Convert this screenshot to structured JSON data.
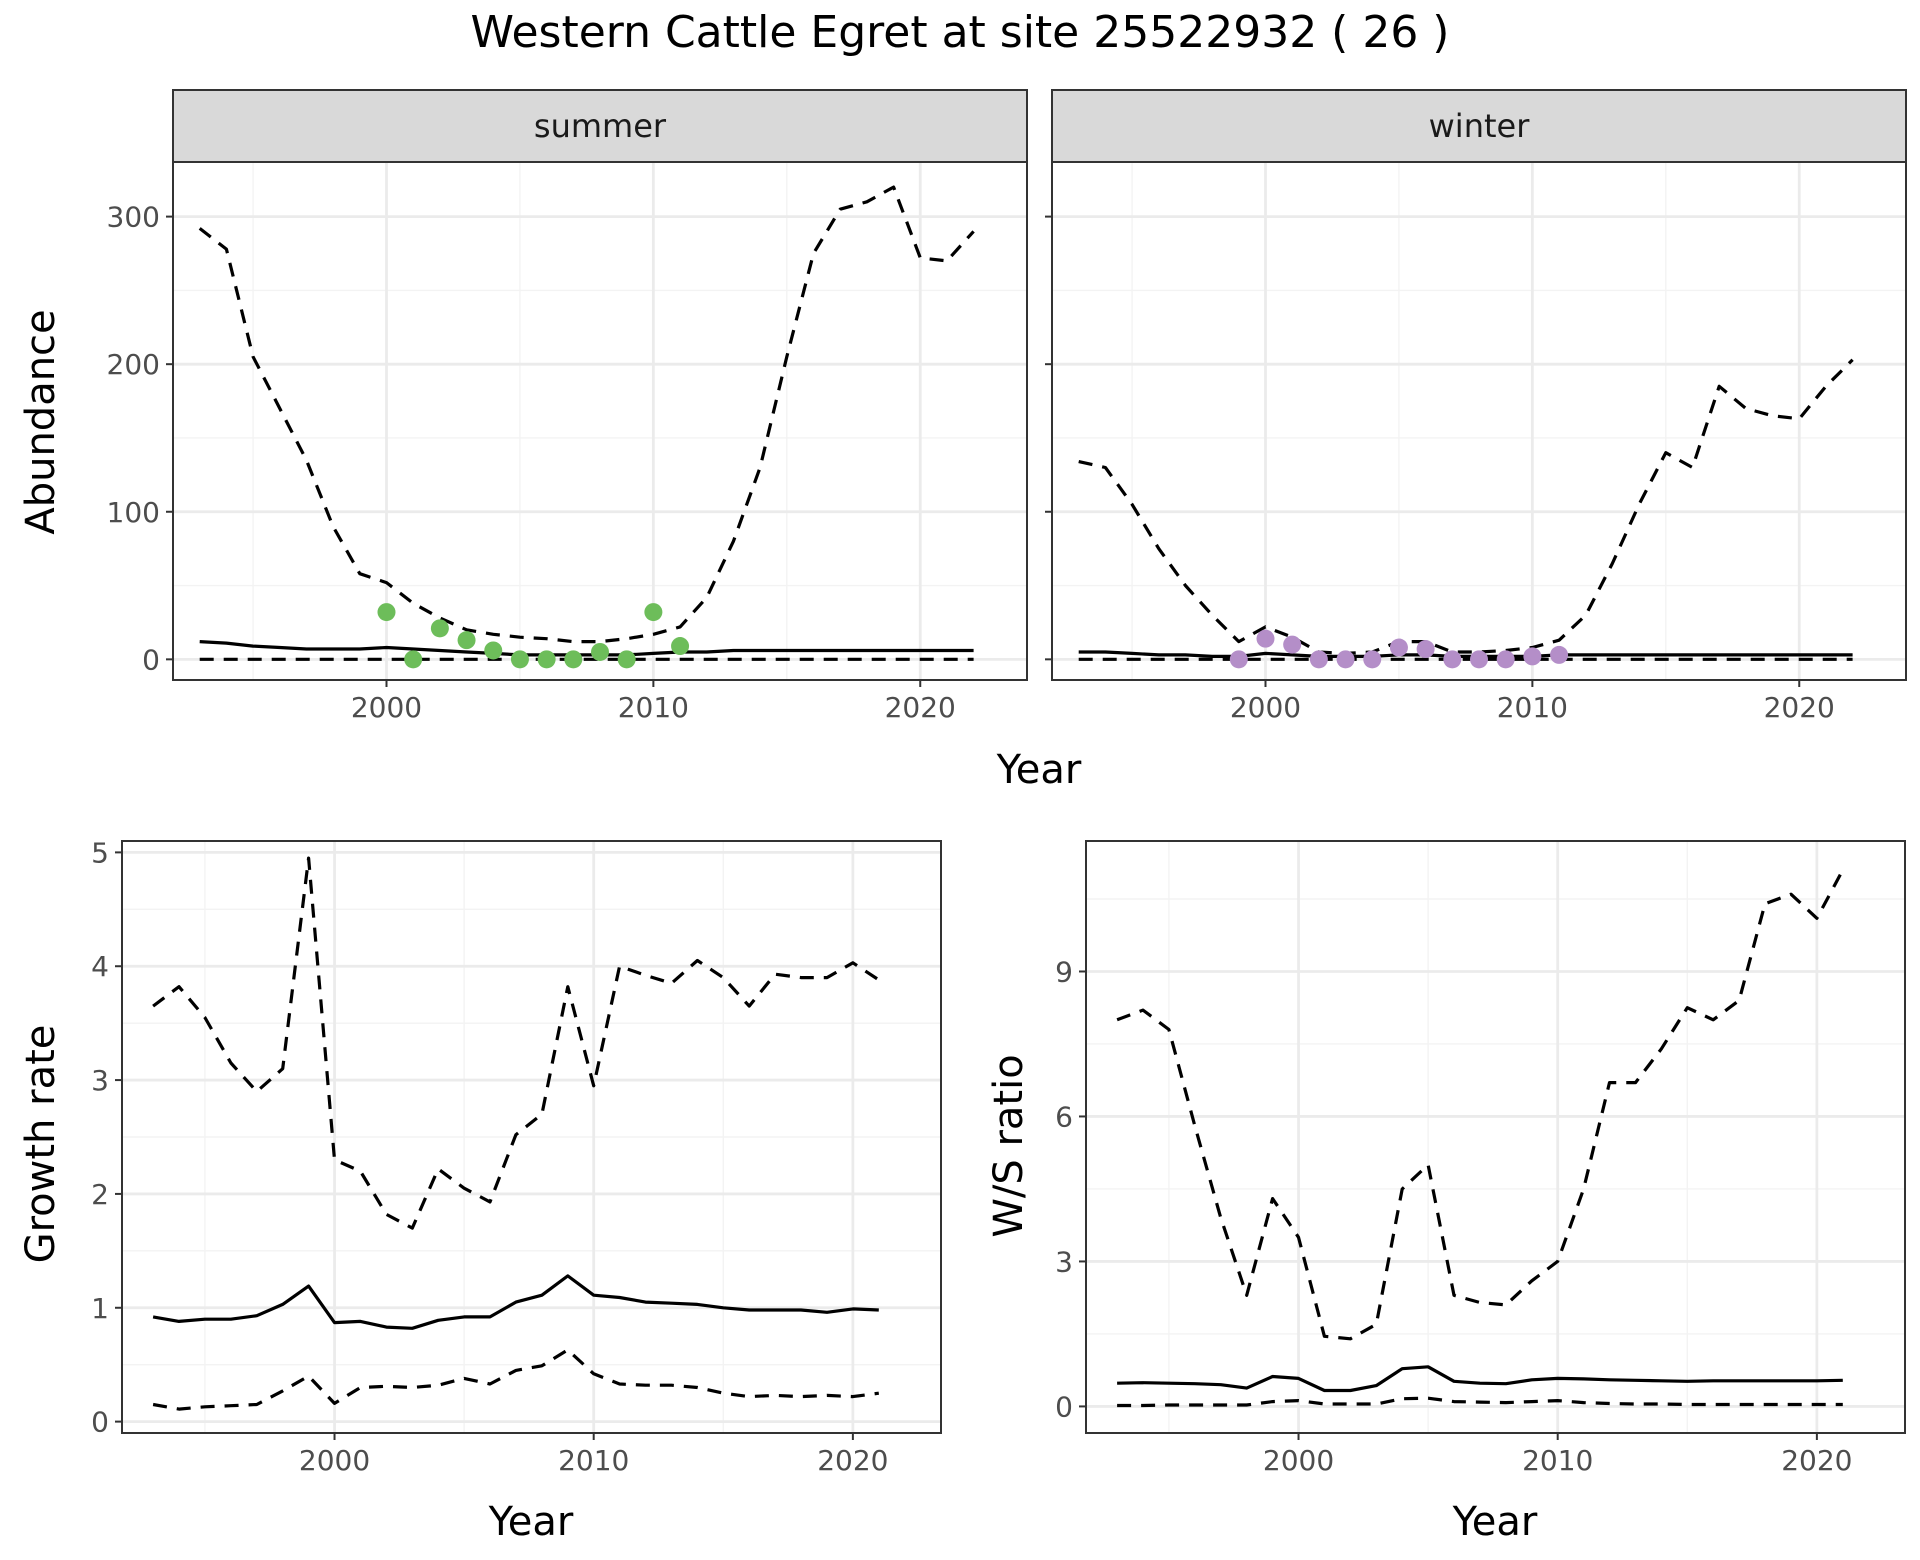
{
  "title": "Western Cattle Egret at site 25522932 ( 26 )",
  "colors": {
    "summer_points": "#6dbd5a",
    "winter_points": "#b48ec8"
  },
  "chart_data": [
    {
      "type": "line",
      "id": "summer",
      "facet_label": "summer",
      "xlabel": "Year",
      "ylabel": "Abundance",
      "xlim": [
        1992,
        2024
      ],
      "ylim": [
        -14,
        337
      ],
      "x_ticks": [
        2000,
        2010,
        2020
      ],
      "y_ticks": [
        0,
        100,
        200,
        300
      ],
      "x_tick_labels": [
        "2000",
        "2010",
        "2020"
      ],
      "y_tick_labels": [
        "0",
        "100",
        "200",
        "300"
      ],
      "grid": true,
      "x": [
        1993,
        1994,
        1995,
        1996,
        1997,
        1998,
        1999,
        2000,
        2001,
        2002,
        2003,
        2004,
        2005,
        2006,
        2007,
        2008,
        2009,
        2010,
        2011,
        2012,
        2013,
        2014,
        2015,
        2016,
        2017,
        2018,
        2019,
        2020,
        2021,
        2022
      ],
      "series": [
        {
          "name": "",
          "style": "dashed",
          "values": [
            292,
            278,
            205,
            170,
            135,
            90,
            58,
            52,
            38,
            28,
            20,
            17,
            15,
            14,
            12,
            12,
            14,
            17,
            22,
            42,
            80,
            130,
            205,
            275,
            305,
            310,
            320,
            272,
            270,
            290
          ]
        },
        {
          "name": "",
          "style": "solid",
          "values": [
            12,
            11,
            9,
            8,
            7,
            7,
            7,
            8,
            7,
            6,
            5,
            4,
            3,
            3,
            3,
            3,
            3,
            4,
            5,
            5,
            6,
            6,
            6,
            6,
            6,
            6,
            6,
            6,
            6,
            6
          ]
        },
        {
          "name": "",
          "style": "dashed",
          "values": [
            0,
            0,
            0,
            0,
            0,
            0,
            0,
            0,
            0,
            0,
            0,
            0,
            0,
            0,
            0,
            0,
            0,
            0,
            0,
            0,
            0,
            0,
            0,
            0,
            0,
            0,
            0,
            0,
            0,
            0
          ]
        }
      ],
      "points": {
        "x": [
          2000,
          2001,
          2002,
          2003,
          2004,
          2005,
          2006,
          2007,
          2008,
          2009,
          2010,
          2011
        ],
        "y": [
          32,
          0,
          21,
          13,
          6,
          0,
          0,
          0,
          5,
          0,
          32,
          9
        ]
      }
    },
    {
      "type": "line",
      "id": "winter",
      "facet_label": "winter",
      "xlabel": "Year",
      "ylabel": "Abundance",
      "xlim": [
        1992,
        2024
      ],
      "ylim": [
        -14,
        337
      ],
      "x_ticks": [
        2000,
        2010,
        2020
      ],
      "y_ticks": [
        0,
        100,
        200,
        300
      ],
      "x_tick_labels": [
        "2000",
        "2010",
        "2020"
      ],
      "y_tick_labels": [],
      "grid": true,
      "x": [
        1993,
        1994,
        1995,
        1996,
        1997,
        1998,
        1999,
        2000,
        2001,
        2002,
        2003,
        2004,
        2005,
        2006,
        2007,
        2008,
        2009,
        2010,
        2011,
        2012,
        2013,
        2014,
        2015,
        2016,
        2017,
        2018,
        2019,
        2020,
        2021,
        2022
      ],
      "series": [
        {
          "name": "",
          "style": "dashed",
          "values": [
            134,
            130,
            105,
            75,
            50,
            30,
            12,
            22,
            15,
            5,
            4,
            5,
            12,
            12,
            5,
            5,
            6,
            8,
            13,
            30,
            65,
            105,
            140,
            130,
            185,
            170,
            165,
            163,
            185,
            203
          ]
        },
        {
          "name": "",
          "style": "solid",
          "values": [
            5,
            5,
            4,
            3,
            3,
            2,
            2,
            4,
            3,
            2,
            2,
            2,
            3,
            3,
            2,
            2,
            2,
            2,
            3,
            3,
            3,
            3,
            3,
            3,
            3,
            3,
            3,
            3,
            3,
            3
          ]
        },
        {
          "name": "",
          "style": "dashed",
          "values": [
            0,
            0,
            0,
            0,
            0,
            0,
            0,
            0,
            0,
            0,
            0,
            0,
            0,
            0,
            0,
            0,
            0,
            0,
            0,
            0,
            0,
            0,
            0,
            0,
            0,
            0,
            0,
            0,
            0,
            0
          ]
        }
      ],
      "points": {
        "x": [
          1999,
          2000,
          2001,
          2002,
          2003,
          2004,
          2005,
          2006,
          2007,
          2008,
          2009,
          2010,
          2011
        ],
        "y": [
          0,
          14,
          10,
          0,
          0,
          0,
          8,
          7,
          0,
          0,
          0,
          2,
          3
        ]
      }
    },
    {
      "type": "line",
      "id": "growth",
      "facet_label": "",
      "xlabel": "Year",
      "ylabel": "Growth rate",
      "xlim": [
        1991.8,
        2023.4
      ],
      "ylim": [
        -0.1,
        5.1
      ],
      "x_ticks": [
        2000,
        2010,
        2020
      ],
      "y_ticks": [
        0,
        1,
        2,
        3,
        4,
        5
      ],
      "x_tick_labels": [
        "2000",
        "2010",
        "2020"
      ],
      "y_tick_labels": [
        "0",
        "1",
        "2",
        "3",
        "4",
        "5"
      ],
      "grid": true,
      "x": [
        1993,
        1994,
        1995,
        1996,
        1997,
        1998,
        1999,
        2000,
        2001,
        2002,
        2003,
        2004,
        2005,
        2006,
        2007,
        2008,
        2009,
        2010,
        2011,
        2012,
        2013,
        2014,
        2015,
        2016,
        2017,
        2018,
        2019,
        2020,
        2021
      ],
      "series": [
        {
          "name": "",
          "style": "dashed",
          "values": [
            3.65,
            3.82,
            3.55,
            3.15,
            2.9,
            3.1,
            4.95,
            2.3,
            2.2,
            1.82,
            1.7,
            2.22,
            2.05,
            1.93,
            2.52,
            2.7,
            3.82,
            2.95,
            4.0,
            3.92,
            3.85,
            4.05,
            3.9,
            3.65,
            3.93,
            3.9,
            3.9,
            4.03,
            3.88
          ]
        },
        {
          "name": "",
          "style": "solid",
          "values": [
            0.92,
            0.88,
            0.9,
            0.9,
            0.93,
            1.03,
            1.19,
            0.87,
            0.88,
            0.83,
            0.82,
            0.89,
            0.92,
            0.92,
            1.05,
            1.11,
            1.28,
            1.11,
            1.09,
            1.05,
            1.04,
            1.03,
            1.0,
            0.98,
            0.98,
            0.98,
            0.96,
            0.99,
            0.98
          ]
        },
        {
          "name": "",
          "style": "dashed",
          "values": [
            0.15,
            0.11,
            0.13,
            0.14,
            0.15,
            0.27,
            0.4,
            0.16,
            0.3,
            0.31,
            0.3,
            0.32,
            0.38,
            0.33,
            0.45,
            0.49,
            0.63,
            0.42,
            0.33,
            0.32,
            0.32,
            0.3,
            0.25,
            0.22,
            0.23,
            0.22,
            0.23,
            0.22,
            0.25
          ]
        }
      ]
    },
    {
      "type": "line",
      "id": "ratio",
      "facet_label": "",
      "xlabel": "Year",
      "ylabel": "W/S ratio",
      "xlim": [
        1991.8,
        2023.4
      ],
      "ylim": [
        -0.55,
        11.7
      ],
      "x_ticks": [
        2000,
        2010,
        2020
      ],
      "y_ticks": [
        0,
        3,
        6,
        9
      ],
      "x_tick_labels": [
        "2000",
        "2010",
        "2020"
      ],
      "y_tick_labels": [
        "0",
        "3",
        "6",
        "9"
      ],
      "grid": true,
      "x": [
        1993,
        1994,
        1995,
        1996,
        1997,
        1998,
        1999,
        2000,
        2001,
        2002,
        2003,
        2004,
        2005,
        2006,
        2007,
        2008,
        2009,
        2010,
        2011,
        2012,
        2013,
        2014,
        2015,
        2016,
        2017,
        2018,
        2019,
        2020,
        2021
      ],
      "series": [
        {
          "name": "",
          "style": "dashed",
          "values": [
            8.0,
            8.2,
            7.8,
            5.8,
            3.9,
            2.3,
            4.3,
            3.5,
            1.45,
            1.4,
            1.7,
            4.5,
            5.0,
            2.3,
            2.15,
            2.1,
            2.6,
            3.0,
            4.5,
            6.7,
            6.7,
            7.4,
            8.25,
            8.0,
            8.4,
            10.4,
            10.6,
            10.1,
            11.1
          ]
        },
        {
          "name": "",
          "style": "solid",
          "values": [
            0.48,
            0.49,
            0.48,
            0.47,
            0.45,
            0.38,
            0.62,
            0.58,
            0.33,
            0.33,
            0.43,
            0.78,
            0.82,
            0.52,
            0.48,
            0.47,
            0.55,
            0.58,
            0.57,
            0.55,
            0.54,
            0.53,
            0.52,
            0.53,
            0.53,
            0.53,
            0.53,
            0.53,
            0.54
          ]
        },
        {
          "name": "",
          "style": "dashed",
          "values": [
            0.02,
            0.02,
            0.03,
            0.03,
            0.03,
            0.03,
            0.1,
            0.12,
            0.05,
            0.05,
            0.05,
            0.16,
            0.17,
            0.1,
            0.09,
            0.08,
            0.1,
            0.12,
            0.08,
            0.06,
            0.05,
            0.05,
            0.04,
            0.04,
            0.04,
            0.04,
            0.04,
            0.04,
            0.04
          ]
        }
      ]
    }
  ],
  "shared_xlabel_top": "Year"
}
